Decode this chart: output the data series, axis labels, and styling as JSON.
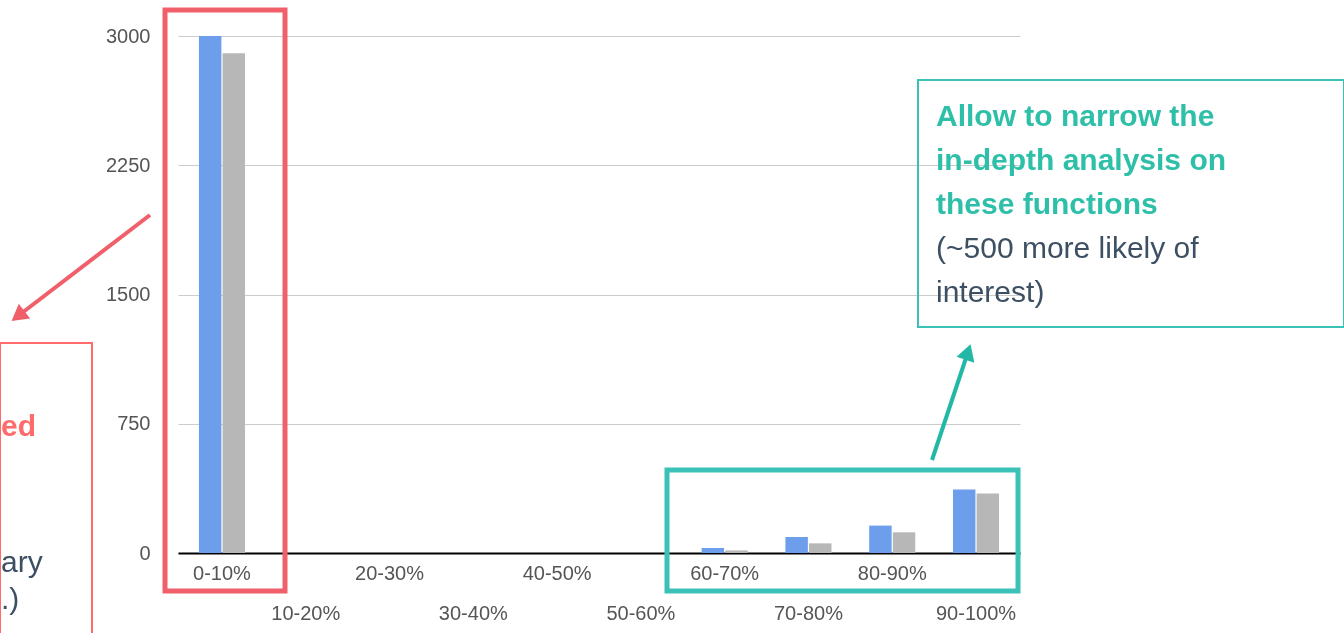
{
  "chart_data": {
    "type": "bar",
    "categories": [
      "0-10%",
      "10-20%",
      "20-30%",
      "30-40%",
      "40-50%",
      "50-60%",
      "60-70%",
      "70-80%",
      "80-90%",
      "90-100%"
    ],
    "series": [
      {
        "color": "#6d9eeb",
        "values": [
          3000,
          0,
          0,
          0,
          0,
          0,
          29,
          93,
          159,
          368
        ]
      },
      {
        "color": "#b7b7b7",
        "values": [
          2900,
          0,
          0,
          0,
          0,
          0,
          15,
          56,
          120,
          345
        ]
      }
    ],
    "ylim": [
      0,
      3000
    ],
    "yticks": [
      0,
      750,
      1500,
      2250,
      3000
    ],
    "grid": "y",
    "legend": false,
    "annotations": [
      "Allow to narrow the in-depth analysis on these functions",
      "(~500 more likely of interest)",
      "ed",
      "ary",
      ".)"
    ]
  }
}
